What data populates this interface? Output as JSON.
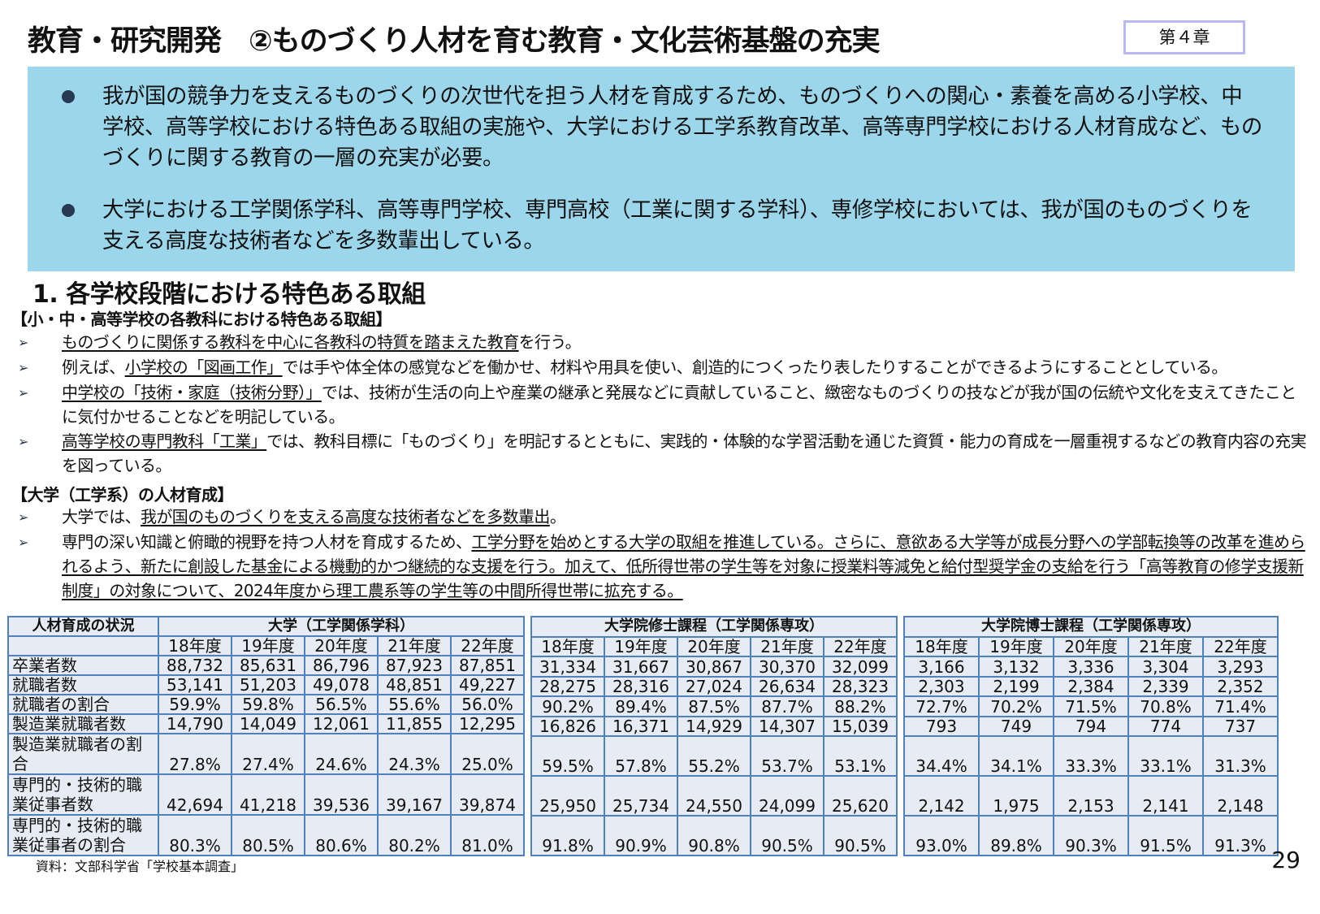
{
  "header": {
    "title": "教育・研究開発　②ものづくり人材を育む教育・文化芸術基盤の充実",
    "chapter": "第４章"
  },
  "summary": {
    "bullets": [
      "我が国の競争力を支えるものづくりの次世代を担う人材を育成するため、ものづくりへの関心・素養を高める小学校、中学校、高等学校における特色ある取組の実施や、大学における工学系教育改革、高等専門学校における人材育成など、ものづくりに関する教育の一層の充実が必要。",
      "大学における工学関係学科、高等専門学校、専門高校（工業に関する学科）、専修学校においては、我が国のものづくりを支える高度な技術者などを多数輩出している。"
    ]
  },
  "section": {
    "heading": "1.  各学校段階における特色ある取組",
    "school": {
      "heading": "【小・中・高等学校の各教科における特色ある取組】",
      "items": [
        {
          "u1": "ものづくりに関係する教科を中心に各教科の特質を踏まえた教育",
          "t1": "を行う。"
        },
        {
          "t0": "例えば、",
          "u1": "小学校の「図画工作」",
          "t1": "では手や体全体の感覚などを働かせ、材料や用具を使い、創造的につくったり表したりすることができるようにすることとしている。"
        },
        {
          "u1": "中学校の「技術・家庭（技術分野）」",
          "t1": "では、技術が生活の向上や産業の継承と発展などに貢献していること、緻密なものづくりの技などが我が国の伝統や文化を支えてきたことに気付かせることなどを明記している。"
        },
        {
          "u1": "高等学校の専門教科「工業」",
          "t1": "では、教科目標に「ものづくり」を明記するとともに、実践的・体験的な学習活動を通じた資質・能力の育成を一層重視するなどの教育内容の充実を図っている。"
        }
      ]
    },
    "university": {
      "heading": "【大学（工学系）の人材育成】",
      "items": [
        {
          "t0": "大学では、",
          "u1": "我が国のものづくりを支える高度な技術者などを多数輩出",
          "t1": "。"
        },
        {
          "t0": "専門の深い知識と俯瞰的視野を持つ人材を育成するため、",
          "u1": "工学分野を始めとする大学の取組を推進している。さらに、意欲ある大学等が成長分野への学部転換等の改革を進められるよう、新たに創設した基金による機動的かつ継続的な支援を行う。加えて、低所得世帯の学生等を対象に授業料等減免と給付型奨学金の支給を行う「高等教育の修学支援新制度」の対象について、2024年度から理工農系等の学生等の中間所得世帯に拡充する。",
          "t1": ""
        }
      ]
    }
  },
  "table": {
    "row_header_title": "人材育成の状況",
    "years": [
      "18年度",
      "19年度",
      "20年度",
      "21年度",
      "22年度"
    ],
    "row_labels": [
      "卒業者数",
      "就職者数",
      "就職者の割合",
      "製造業就職者数",
      "製造業就職者の割合",
      "専門的・技術的職業従事者数",
      "専門的・技術的職業従事者の割合"
    ],
    "groups": [
      {
        "title": "大学（工学関係学科）",
        "rows": [
          [
            "88,732",
            "85,631",
            "86,796",
            "87,923",
            "87,851"
          ],
          [
            "53,141",
            "51,203",
            "49,078",
            "48,851",
            "49,227"
          ],
          [
            "59.9%",
            "59.8%",
            "56.5%",
            "55.6%",
            "56.0%"
          ],
          [
            "14,790",
            "14,049",
            "12,061",
            "11,855",
            "12,295"
          ],
          [
            "27.8%",
            "27.4%",
            "24.6%",
            "24.3%",
            "25.0%"
          ],
          [
            "42,694",
            "41,218",
            "39,536",
            "39,167",
            "39,874"
          ],
          [
            "80.3%",
            "80.5%",
            "80.6%",
            "80.2%",
            "81.0%"
          ]
        ]
      },
      {
        "title": "大学院修士課程（工学関係専攻）",
        "rows": [
          [
            "31,334",
            "31,667",
            "30,867",
            "30,370",
            "32,099"
          ],
          [
            "28,275",
            "28,316",
            "27,024",
            "26,634",
            "28,323"
          ],
          [
            "90.2%",
            "89.4%",
            "87.5%",
            "87.7%",
            "88.2%"
          ],
          [
            "16,826",
            "16,371",
            "14,929",
            "14,307",
            "15,039"
          ],
          [
            "59.5%",
            "57.8%",
            "55.2%",
            "53.7%",
            "53.1%"
          ],
          [
            "25,950",
            "25,734",
            "24,550",
            "24,099",
            "25,620"
          ],
          [
            "91.8%",
            "90.9%",
            "90.8%",
            "90.5%",
            "90.5%"
          ]
        ]
      },
      {
        "title": "大学院博士課程（工学関係専攻）",
        "rows": [
          [
            "3,166",
            "3,132",
            "3,336",
            "3,304",
            "3,293"
          ],
          [
            "2,303",
            "2,199",
            "2,384",
            "2,339",
            "2,352"
          ],
          [
            "72.7%",
            "70.2%",
            "71.5%",
            "70.8%",
            "71.4%"
          ],
          [
            "793",
            "749",
            "794",
            "774",
            "737"
          ],
          [
            "34.4%",
            "34.1%",
            "33.3%",
            "33.1%",
            "31.3%"
          ],
          [
            "2,142",
            "1,975",
            "2,153",
            "2,141",
            "2,148"
          ],
          [
            "93.0%",
            "89.8%",
            "90.3%",
            "91.5%",
            "91.3%"
          ]
        ]
      }
    ],
    "source": "資料：文部科学省「学校基本調査」"
  },
  "footer": {
    "page_number": "29"
  },
  "colors": {
    "summary_bg": "#9bd6ea",
    "table_border": "#4f81bd",
    "table_bg": "#e7ecf4",
    "chapter_border": "#b8b8f5"
  }
}
